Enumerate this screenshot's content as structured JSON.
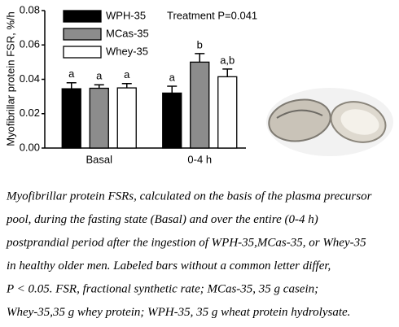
{
  "chart_data": {
    "type": "bar",
    "ylabel": "Myofibrillar protein FSR, %/h",
    "annotation": "Treatment P=0.041",
    "categories": [
      "Basal",
      "0-4 h"
    ],
    "series": [
      {
        "name": "WPH-35",
        "color": "#000000",
        "values": [
          0.0345,
          0.032
        ],
        "errors": [
          0.0035,
          0.004
        ],
        "letters": [
          "a",
          "a"
        ]
      },
      {
        "name": "MCas-35",
        "color": "#8c8c8c",
        "values": [
          0.0348,
          0.05
        ],
        "errors": [
          0.002,
          0.005
        ],
        "letters": [
          "a",
          "b"
        ]
      },
      {
        "name": "Whey-35",
        "color": "#ffffff",
        "values": [
          0.035,
          0.0415
        ],
        "errors": [
          0.0025,
          0.0045
        ],
        "letters": [
          "a",
          "a,b"
        ]
      }
    ],
    "ylim": [
      0,
      0.08
    ],
    "yticks": [
      {
        "value": 0,
        "label": "0.00"
      },
      0.02,
      0.04,
      0.06,
      0.08
    ]
  },
  "caption": [
    "Myofibrillar protein FSRs, calculated on the basis of the plasma precursor",
    "pool, during the fasting state (Basal) and over the entire (0-4 h)",
    "postprandial period after the ingestion of WPH-35,MCas-35, or Whey-35",
    "in healthy older men. Labeled bars without a common letter differ,",
    "P < 0.05. FSR, fractional synthetic rate; MCas-35, 35 g casein;",
    "Whey-35,35 g whey protein; WPH-35, 35 g wheat protein hydrolysate."
  ]
}
